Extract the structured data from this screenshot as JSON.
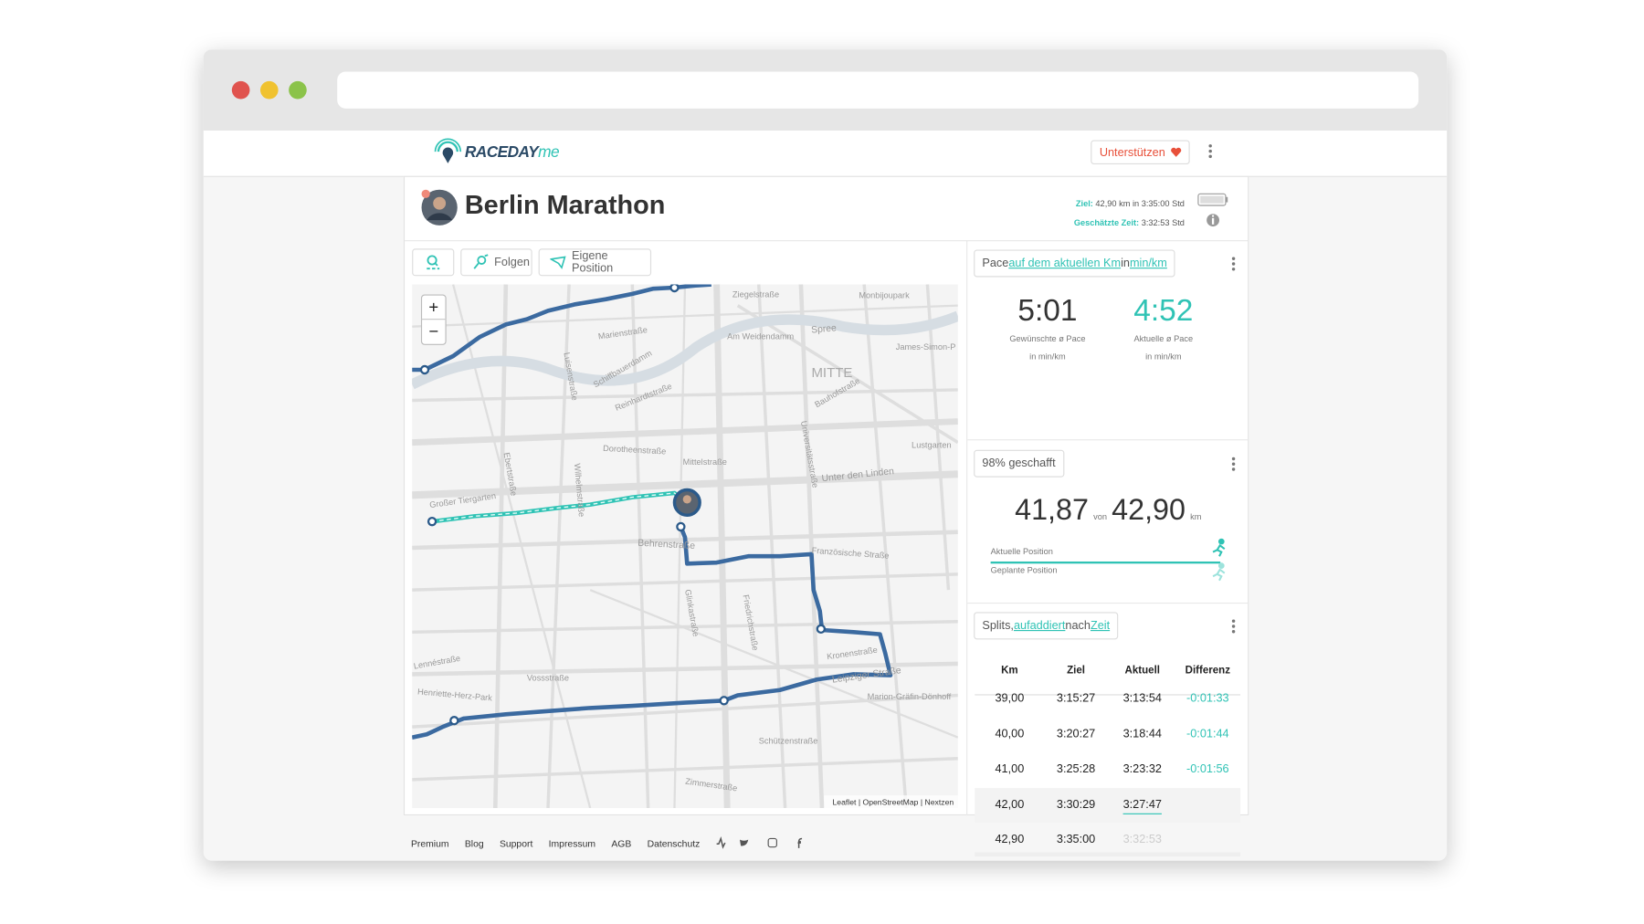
{
  "header": {
    "logo_main": "RACEDAY",
    "logo_suffix": "me",
    "support_button": "Unterstützen"
  },
  "race": {
    "title": "Berlin Marathon",
    "goal_label": "Ziel:",
    "goal_text": "42,90 km in 3:35:00 Std",
    "estimate_label": "Geschätzte Zeit:",
    "estimate_text": "3:32:53 Std"
  },
  "toolbar": [
    "Folgen",
    "Eigene Position"
  ],
  "map": {
    "labels": [
      "MITTE",
      "Spree",
      "Unter den Linden",
      "Behrenstraße",
      "Leipziger Straße",
      "Großer Tiergarten",
      "Monbijoupark",
      "Ziegelstraße",
      "Am Weidendamm",
      "Marienstraße",
      "Schiffbauerdamm",
      "Reinhardtstraße",
      "Dorotheenstraße",
      "Mittelstraße",
      "Französische Straße",
      "Kronenstraße",
      "Zimmerstraße",
      "Lennéstraße",
      "Henriette-Herz-Park",
      "Vossstraße",
      "Wilhelmstraße",
      "Glinkastraße",
      "Friedrichstraße",
      "Universitätsstraße",
      "Bauhofstraße",
      "Lustgarten",
      "Marion-Gräfin-Dönhoff",
      "Schützenstraße",
      "Ebertstraße",
      "Luisenstraße",
      "James-Simon-P"
    ],
    "zoom_in": "+",
    "zoom_out": "−",
    "attribution": [
      "Leaflet",
      "OpenStreetMap",
      "Nextzen"
    ]
  },
  "pace": {
    "header": [
      "Pace",
      "auf dem aktuellen Km",
      "in",
      "min/km"
    ],
    "desired_value": "5:01",
    "desired_label": "Gewünschte ø Pace",
    "desired_unit": "in min/km",
    "current_value": "4:52",
    "current_label": "Aktuelle ø Pace",
    "current_unit": "in min/km"
  },
  "progress": {
    "header": "98% geschafft",
    "done": "41,87",
    "of": "von",
    "total": "42,90",
    "unit": "km",
    "current_label": "Aktuelle Position",
    "planned_label": "Geplante Position"
  },
  "splits": {
    "header": [
      "Splits,",
      "aufaddiert",
      "nach",
      "Zeit"
    ],
    "columns": [
      "Km",
      "Ziel",
      "Aktuell",
      "Differenz"
    ],
    "rows": [
      [
        "39,00",
        "3:15:27",
        "3:13:54",
        "-0:01:33"
      ],
      [
        "40,00",
        "3:20:27",
        "3:18:44",
        "-0:01:44"
      ],
      [
        "41,00",
        "3:25:28",
        "3:23:32",
        "-0:01:56"
      ],
      [
        "42,00",
        "3:30:29",
        "3:27:47"
      ],
      [
        "42,90",
        "3:35:00",
        "3:32:53"
      ]
    ]
  },
  "footer": [
    "Premium",
    "Blog",
    "Support",
    "Impressum",
    "AGB",
    "Datenschutz"
  ]
}
